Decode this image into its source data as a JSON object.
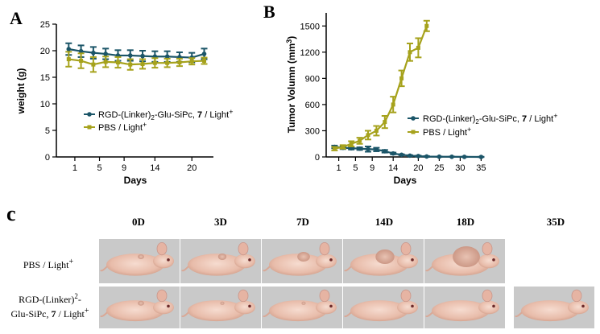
{
  "panels": {
    "a": "A",
    "b": "B",
    "c": "c"
  },
  "legend": {
    "rgd_prefix": "RGD-(Linker)",
    "rgd_sub": "2",
    "rgd_mid": "-Glu-SiPc, ",
    "rgd_bold": "7",
    "rgd_tail": " / Light",
    "plus": "+",
    "pbs": "PBS / Light"
  },
  "colors": {
    "rgd": "#1b5568",
    "pbs": "#a6a21c"
  },
  "chart_data": [
    {
      "type": "line",
      "panel": "A",
      "xlabel": "Days",
      "ylabel": "weight (g)",
      "ylim": [
        0,
        25
      ],
      "yticks": [
        "0",
        "5",
        "10",
        "15",
        "20",
        "25"
      ],
      "yticks_values": [
        0,
        5,
        10,
        15,
        20,
        25
      ],
      "xticks": [
        "1",
        "5",
        "9",
        "14",
        "20"
      ],
      "xticks_values": [
        1,
        5,
        9,
        14,
        20
      ],
      "xlim": [
        -2,
        23.5
      ],
      "series": [
        {
          "name": "RGD-(Linker)2-Glu-SiPc, 7 / Light+",
          "key": "rgd",
          "x": [
            0,
            2,
            4,
            6,
            8,
            10,
            12,
            14,
            16,
            18,
            20,
            22
          ],
          "values": [
            20.3,
            19.9,
            19.6,
            19.4,
            19.1,
            19.1,
            19.0,
            18.9,
            18.9,
            18.8,
            18.7,
            19.4
          ],
          "errors": [
            1.1,
            1.1,
            1.1,
            1.0,
            1.0,
            1.0,
            1.0,
            1.0,
            1.0,
            0.9,
            0.9,
            1.0
          ]
        },
        {
          "name": "PBS / Light+",
          "key": "pbs",
          "x": [
            0,
            2,
            4,
            6,
            8,
            10,
            12,
            14,
            16,
            18,
            20,
            22
          ],
          "values": [
            18.4,
            18.1,
            17.4,
            17.9,
            17.8,
            17.4,
            17.5,
            17.7,
            17.7,
            17.8,
            18.0,
            18.1
          ],
          "errors": [
            1.4,
            1.4,
            1.4,
            1.0,
            1.0,
            1.0,
            0.9,
            0.9,
            0.8,
            0.7,
            0.6,
            0.6
          ]
        }
      ]
    },
    {
      "type": "line",
      "panel": "B",
      "xlabel": "Days",
      "ylabel": "Tumor Volumn (mm3)",
      "ylabel_main": "Tumor Volumn (mm",
      "ylabel_sup": "3",
      "ylabel_end": ")",
      "ylim": [
        0,
        1650
      ],
      "yticks": [
        "0",
        "300",
        "600",
        "900",
        "1200",
        "1500"
      ],
      "yticks_values": [
        0,
        300,
        600,
        900,
        1200,
        1500
      ],
      "xticks": [
        "1",
        "5",
        "9",
        "14",
        "20",
        "25",
        "30",
        "35"
      ],
      "xticks_values": [
        1,
        5,
        9,
        14,
        20,
        25,
        30,
        35
      ],
      "xlim": [
        -2,
        35.5
      ],
      "series": [
        {
          "name": "RGD-(Linker)2-Glu-SiPc, 7 / Light+",
          "key": "rgd",
          "x": [
            0,
            2,
            4,
            6,
            8,
            10,
            12,
            14,
            16,
            18,
            20,
            22,
            25,
            28,
            31,
            35
          ],
          "values": [
            115,
            105,
            100,
            95,
            90,
            85,
            65,
            40,
            25,
            15,
            10,
            5,
            3,
            2,
            1,
            0
          ],
          "errors": [
            15,
            15,
            15,
            15,
            30,
            20,
            15,
            10,
            5,
            5,
            5,
            5,
            2,
            2,
            2,
            2
          ]
        },
        {
          "name": "PBS / Light+",
          "key": "pbs",
          "x": [
            0,
            2,
            4,
            6,
            8,
            10,
            12,
            14,
            16,
            18,
            20,
            22
          ],
          "values": [
            95,
            115,
            150,
            185,
            250,
            300,
            400,
            600,
            900,
            1200,
            1250,
            1500
          ],
          "errors": [
            20,
            20,
            30,
            35,
            50,
            55,
            70,
            90,
            90,
            100,
            110,
            60
          ]
        }
      ]
    }
  ],
  "photo_panel": {
    "days": [
      "0D",
      "3D",
      "7D",
      "14D",
      "18D",
      "35D"
    ],
    "row1": {
      "label": "PBS / Light",
      "sup": "+"
    },
    "row2": {
      "line1_pre": "RGD-(Linker)",
      "line1_sub": "2",
      "line1_post": "-",
      "line2_pre": "Glu-SiPc, ",
      "line2_bold": "7",
      "line2_post": " / Light",
      "line2_sup": "+"
    }
  }
}
